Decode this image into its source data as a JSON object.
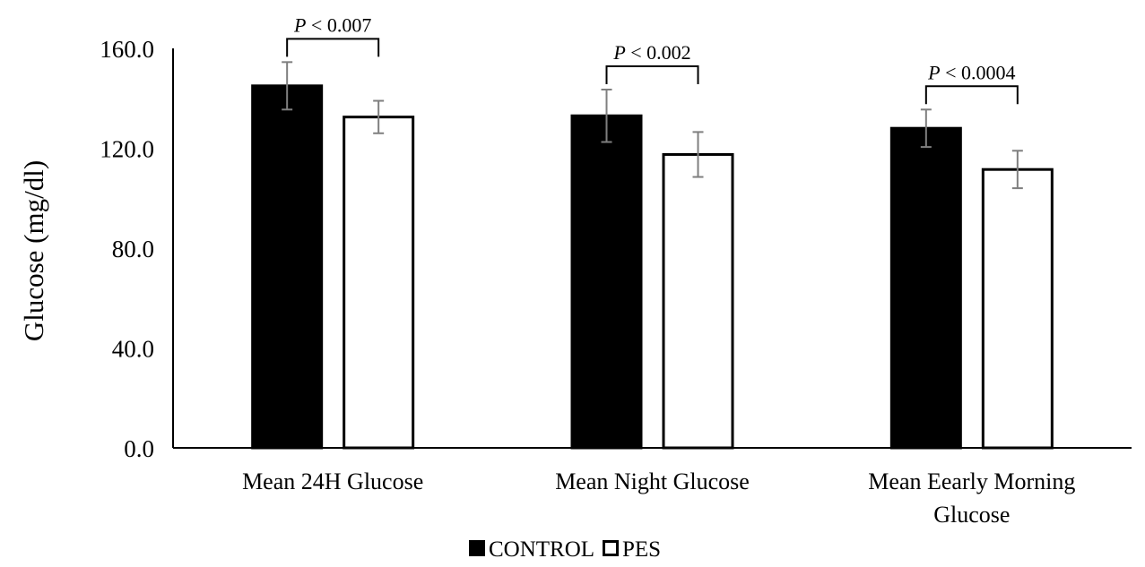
{
  "chart_data": {
    "type": "bar",
    "ylabel": "Glucose (mg/dl)",
    "xlabel": "",
    "ylim": [
      0,
      160
    ],
    "yticks": [
      "0.0",
      "40.0",
      "80.0",
      "120.0",
      "160.0"
    ],
    "ytick_values": [
      0,
      40,
      80,
      120,
      160
    ],
    "categories": [
      [
        "Mean 24H Glucose"
      ],
      [
        "Mean Night Glucose"
      ],
      [
        "Mean Eearly Morning",
        "Glucose"
      ]
    ],
    "series": [
      {
        "name": "CONTROL",
        "fill": "#000000",
        "values": [
          145,
          133,
          128
        ],
        "error": [
          9.5,
          10.5,
          7.5
        ]
      },
      {
        "name": "PES",
        "fill": "#ffffff",
        "values": [
          132.5,
          117.5,
          111.5
        ],
        "error": [
          6.5,
          9,
          7.5
        ]
      }
    ],
    "significance": [
      {
        "p": "P",
        "text": " < 0.007"
      },
      {
        "p": "P",
        "text": " < 0.002"
      },
      {
        "p": "P",
        "text": " < 0.0004"
      }
    ],
    "legend_position": "bottom-center",
    "grid": false,
    "errorbar_color": "#7f7f7f"
  }
}
